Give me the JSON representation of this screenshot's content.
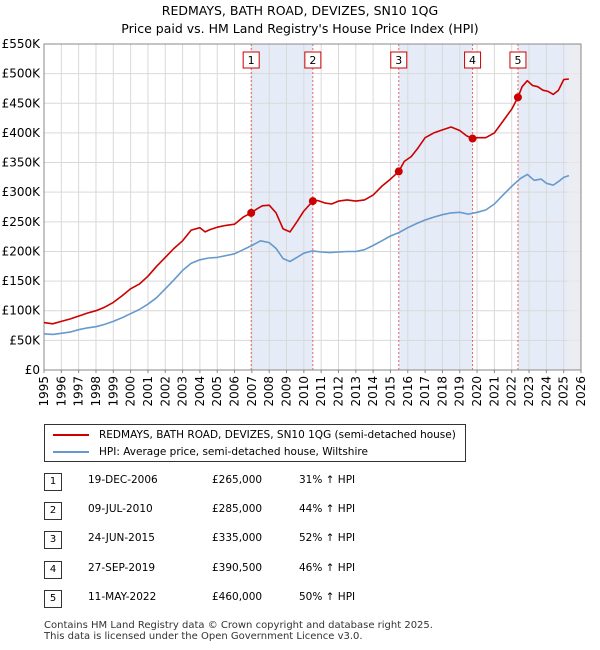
{
  "chart_data": {
    "type": "line",
    "title": "REDMAYS, BATH ROAD, DEVIZES, SN10 1QG",
    "subtitle": "Price paid vs. HM Land Registry's House Price Index (HPI)",
    "xlim": [
      1995,
      2026
    ],
    "ylim": [
      0,
      550000
    ],
    "y_ticks": [
      0,
      50000,
      100000,
      150000,
      200000,
      250000,
      300000,
      350000,
      400000,
      450000,
      500000,
      550000
    ],
    "y_tick_labels": [
      "£0",
      "£50K",
      "£100K",
      "£150K",
      "£200K",
      "£250K",
      "£300K",
      "£350K",
      "£400K",
      "£450K",
      "£500K",
      "£550K"
    ],
    "x_ticks": [
      1995,
      1996,
      1997,
      1998,
      1999,
      2000,
      2001,
      2002,
      2003,
      2004,
      2005,
      2006,
      2007,
      2008,
      2009,
      2010,
      2011,
      2012,
      2013,
      2014,
      2015,
      2016,
      2017,
      2018,
      2019,
      2020,
      2021,
      2022,
      2023,
      2024,
      2025,
      2026
    ],
    "x_tick_labels": [
      "1995",
      "1996",
      "1997",
      "1998",
      "1999",
      "2000",
      "2001",
      "2002",
      "2003",
      "2004",
      "2005",
      "2006",
      "2007",
      "2008",
      "2009",
      "2010",
      "2011",
      "2012",
      "2013",
      "2014",
      "2015",
      "2016",
      "2017",
      "2018",
      "2019",
      "2020",
      "2021",
      "2022",
      "2023",
      "2024",
      "2025",
      "2026"
    ],
    "grid": true,
    "shaded_ranges": [
      [
        2006.96,
        2010.52
      ],
      [
        2015.48,
        2019.74
      ],
      [
        2022.36,
        2026
      ]
    ],
    "series": [
      {
        "name": "REDMAYS, BATH ROAD, DEVIZES, SN10 1QG (semi-detached house)",
        "color": "#cc0000",
        "x": [
          1995.0,
          1995.5,
          1996.0,
          1996.5,
          1997.0,
          1997.5,
          1998.0,
          1998.5,
          1999.0,
          1999.5,
          2000.0,
          2000.5,
          2001.0,
          2001.5,
          2002.0,
          2002.5,
          2003.0,
          2003.5,
          2004.0,
          2004.3,
          2004.6,
          2005.0,
          2005.5,
          2006.0,
          2006.5,
          2006.96,
          2007.3,
          2007.6,
          2008.0,
          2008.4,
          2008.8,
          2009.2,
          2009.6,
          2010.0,
          2010.52,
          2010.8,
          2011.2,
          2011.6,
          2012.0,
          2012.5,
          2013.0,
          2013.5,
          2014.0,
          2014.5,
          2015.0,
          2015.48,
          2015.8,
          2016.2,
          2016.6,
          2017.0,
          2017.5,
          2018.0,
          2018.5,
          2019.0,
          2019.4,
          2019.74,
          2020.0,
          2020.5,
          2021.0,
          2021.5,
          2022.0,
          2022.36,
          2022.6,
          2022.9,
          2023.2,
          2023.5,
          2023.8,
          2024.1,
          2024.4,
          2024.7,
          2025.0,
          2025.3
        ],
        "values": [
          80000,
          78000,
          82000,
          86000,
          91000,
          96000,
          100000,
          106000,
          114000,
          125000,
          137000,
          145000,
          158000,
          175000,
          190000,
          205000,
          218000,
          236000,
          240000,
          233000,
          237000,
          241000,
          244000,
          246000,
          258000,
          265000,
          272000,
          277000,
          278000,
          265000,
          238000,
          233000,
          250000,
          268000,
          285000,
          286000,
          282000,
          280000,
          285000,
          287000,
          285000,
          287000,
          295000,
          310000,
          322000,
          335000,
          352000,
          360000,
          375000,
          392000,
          400000,
          405000,
          410000,
          404000,
          395000,
          390500,
          392000,
          392000,
          400000,
          420000,
          440000,
          460000,
          478000,
          488000,
          480000,
          478000,
          472000,
          470000,
          465000,
          472000,
          490000,
          491000
        ]
      },
      {
        "name": "HPI: Average price, semi-detached house, Wiltshire",
        "color": "#6699cc",
        "x": [
          1995.0,
          1995.5,
          1996.0,
          1996.5,
          1997.0,
          1997.5,
          1998.0,
          1998.5,
          1999.0,
          1999.5,
          2000.0,
          2000.5,
          2001.0,
          2001.5,
          2002.0,
          2002.5,
          2003.0,
          2003.5,
          2004.0,
          2004.5,
          2005.0,
          2005.5,
          2006.0,
          2006.5,
          2007.0,
          2007.5,
          2008.0,
          2008.4,
          2008.8,
          2009.2,
          2009.6,
          2010.0,
          2010.5,
          2011.0,
          2011.5,
          2012.0,
          2012.5,
          2013.0,
          2013.5,
          2014.0,
          2014.5,
          2015.0,
          2015.5,
          2016.0,
          2016.5,
          2017.0,
          2017.5,
          2018.0,
          2018.5,
          2019.0,
          2019.5,
          2020.0,
          2020.5,
          2021.0,
          2021.5,
          2022.0,
          2022.5,
          2022.9,
          2023.3,
          2023.7,
          2024.0,
          2024.4,
          2024.8,
          2025.0,
          2025.3
        ],
        "values": [
          61000,
          60000,
          62000,
          64000,
          68000,
          71000,
          73000,
          77000,
          82000,
          88000,
          95000,
          102000,
          111000,
          122000,
          137000,
          152000,
          168000,
          180000,
          186000,
          189000,
          190000,
          193000,
          196000,
          203000,
          210000,
          218000,
          215000,
          205000,
          188000,
          183000,
          190000,
          197000,
          201000,
          199000,
          198000,
          199000,
          200000,
          200000,
          203000,
          210000,
          218000,
          226000,
          232000,
          240000,
          247000,
          253000,
          258000,
          262000,
          265000,
          266000,
          263000,
          266000,
          270000,
          280000,
          295000,
          310000,
          323000,
          330000,
          320000,
          322000,
          315000,
          312000,
          320000,
          325000,
          328000
        ]
      }
    ],
    "sales": [
      {
        "marker": "1",
        "x": 2006.96,
        "price": 265000
      },
      {
        "marker": "2",
        "x": 2010.52,
        "price": 285000
      },
      {
        "marker": "3",
        "x": 2015.48,
        "price": 335000
      },
      {
        "marker": "4",
        "x": 2019.74,
        "price": 390500
      },
      {
        "marker": "5",
        "x": 2022.36,
        "price": 460000
      }
    ]
  },
  "legend": {
    "property": "REDMAYS, BATH ROAD, DEVIZES, SN10 1QG (semi-detached house)",
    "hpi": "HPI: Average price, semi-detached house, Wiltshire",
    "property_color": "#cc0000",
    "hpi_color": "#6699cc"
  },
  "sales_table": [
    {
      "num": "1",
      "date": "19-DEC-2006",
      "price": "£265,000",
      "hpi": "31% ↑ HPI"
    },
    {
      "num": "2",
      "date": "09-JUL-2010",
      "price": "£285,000",
      "hpi": "44% ↑ HPI"
    },
    {
      "num": "3",
      "date": "24-JUN-2015",
      "price": "£335,000",
      "hpi": "52% ↑ HPI"
    },
    {
      "num": "4",
      "date": "27-SEP-2019",
      "price": "£390,500",
      "hpi": "46% ↑ HPI"
    },
    {
      "num": "5",
      "date": "11-MAY-2022",
      "price": "£460,000",
      "hpi": "50% ↑ HPI"
    }
  ],
  "footer": {
    "line1": "Contains HM Land Registry data © Crown copyright and database right 2025.",
    "line2": "This data is licensed under the Open Government Licence v3.0."
  }
}
